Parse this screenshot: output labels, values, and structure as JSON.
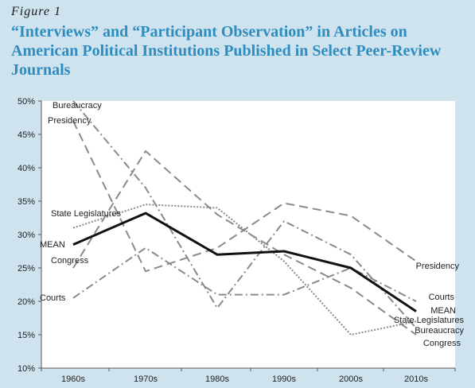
{
  "figure": {
    "label": "Figure 1",
    "title": "“Interviews” and “Participant Observation” in Articles on American Political Institutions Published in Select Peer-Review Journals"
  },
  "chart_data": {
    "type": "line",
    "categories": [
      "1960s",
      "1970s",
      "1980s",
      "1990s",
      "2000s",
      "2010s"
    ],
    "y_ticks": [
      "10%",
      "15%",
      "20%",
      "25%",
      "30%",
      "35%",
      "40%",
      "45%",
      "50%"
    ],
    "ylim": [
      10,
      50
    ],
    "grid": false,
    "series": [
      {
        "name": "Bureaucracy",
        "values": [
          50,
          37,
          19,
          32,
          27,
          16
        ],
        "color": "#8a8a8a",
        "dash": "dashdot",
        "start_label": "Bureaucracy",
        "end_label": "Bureaucracy"
      },
      {
        "name": "Presidency",
        "values": [
          47,
          24.5,
          28,
          34.7,
          32.8,
          26
        ],
        "color": "#8a8a8a",
        "dash": "dash",
        "start_label": "Presidency",
        "end_label": "Presidency"
      },
      {
        "name": "State Legislatures",
        "values": [
          31,
          34.5,
          34,
          26,
          15,
          17
        ],
        "color": "#8a8a8a",
        "dash": "dot",
        "start_label": "State Legislatures",
        "end_label": "State Legislatures"
      },
      {
        "name": "Congress",
        "values": [
          25,
          42.5,
          33,
          27,
          22,
          15
        ],
        "color": "#8a8a8a",
        "dash": "dash",
        "start_label": "Congress",
        "end_label": "Congress"
      },
      {
        "name": "Courts",
        "values": [
          20.5,
          28,
          21,
          21,
          25,
          20
        ],
        "color": "#8a8a8a",
        "dash": "dashdot",
        "start_label": "Courts",
        "end_label": "Courts"
      },
      {
        "name": "MEAN",
        "values": [
          28.5,
          33.2,
          27,
          27.5,
          25,
          18.5
        ],
        "color": "#111111",
        "dash": "solid",
        "start_label": "MEAN",
        "end_label": "MEAN"
      }
    ]
  }
}
